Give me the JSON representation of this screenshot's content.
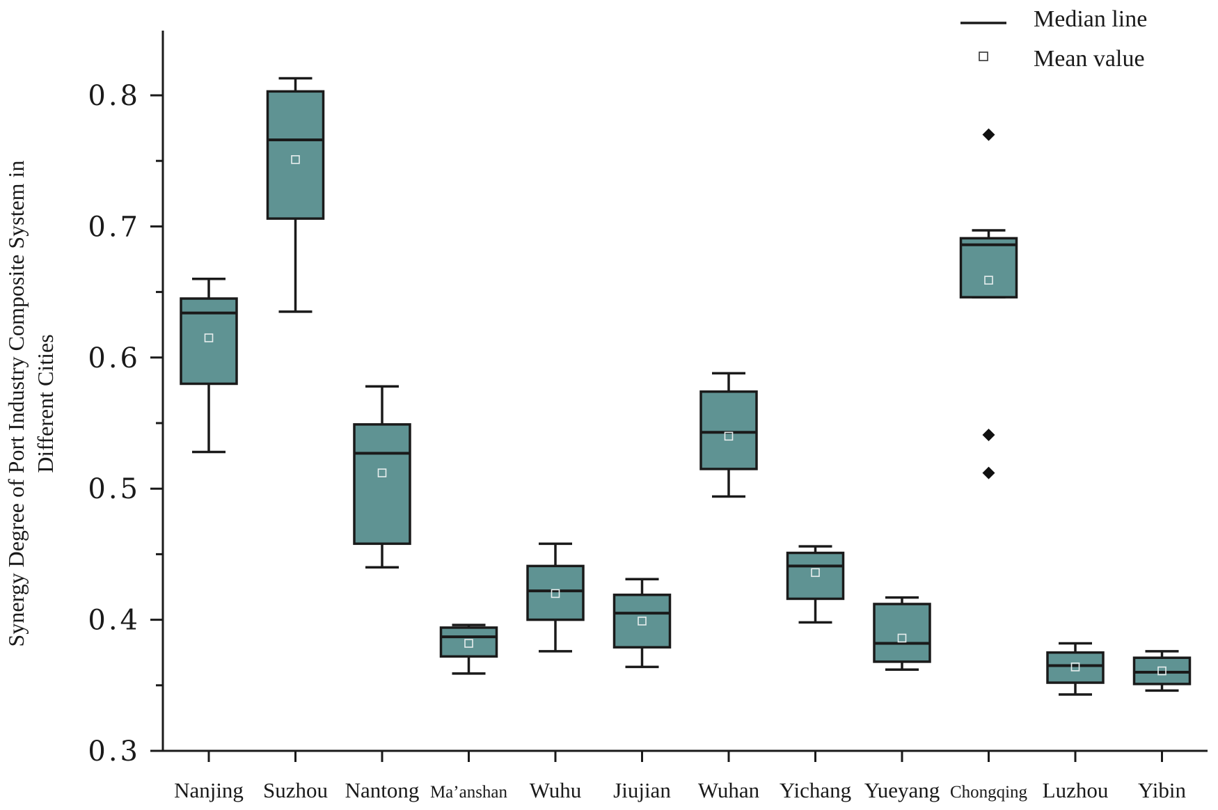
{
  "chart_data": {
    "type": "box",
    "title": "",
    "xlabel": "",
    "ylabel_lines": [
      "Synergy Degree of Port Industry Composite System in",
      "Different Cities"
    ],
    "ylim": [
      0.3,
      0.85
    ],
    "yticks": [
      0.3,
      0.4,
      0.5,
      0.6,
      0.7,
      0.8
    ],
    "ytick_labels": [
      "0.3",
      "0.4",
      "0.5",
      "0.6",
      "0.7",
      "0.8"
    ],
    "categories": [
      "Nanjing",
      "Suzhou",
      "Nantong",
      "Ma’anshan",
      "Wuhu",
      "Jiujian",
      "Wuhan",
      "Yichang",
      "Yueyang",
      "Chongqing",
      "Luzhou",
      "Yibin"
    ],
    "boxes": [
      {
        "city": "Nanjing",
        "min": 0.528,
        "q1": 0.58,
        "median": 0.634,
        "q3": 0.645,
        "max": 0.66,
        "mean": 0.615,
        "outliers": []
      },
      {
        "city": "Suzhou",
        "min": 0.635,
        "q1": 0.706,
        "median": 0.766,
        "q3": 0.803,
        "max": 0.813,
        "mean": 0.751,
        "outliers": []
      },
      {
        "city": "Nantong",
        "min": 0.44,
        "q1": 0.458,
        "median": 0.527,
        "q3": 0.549,
        "max": 0.578,
        "mean": 0.512,
        "outliers": []
      },
      {
        "city": "Ma’anshan",
        "min": 0.359,
        "q1": 0.372,
        "median": 0.387,
        "q3": 0.394,
        "max": 0.396,
        "mean": 0.382,
        "outliers": []
      },
      {
        "city": "Wuhu",
        "min": 0.376,
        "q1": 0.4,
        "median": 0.422,
        "q3": 0.441,
        "max": 0.458,
        "mean": 0.42,
        "outliers": []
      },
      {
        "city": "Jiujian",
        "min": 0.364,
        "q1": 0.379,
        "median": 0.405,
        "q3": 0.419,
        "max": 0.431,
        "mean": 0.399,
        "outliers": []
      },
      {
        "city": "Wuhan",
        "min": 0.494,
        "q1": 0.515,
        "median": 0.543,
        "q3": 0.574,
        "max": 0.588,
        "mean": 0.54,
        "outliers": []
      },
      {
        "city": "Yichang",
        "min": 0.398,
        "q1": 0.416,
        "median": 0.441,
        "q3": 0.451,
        "max": 0.456,
        "mean": 0.436,
        "outliers": []
      },
      {
        "city": "Yueyang",
        "min": 0.362,
        "q1": 0.368,
        "median": 0.382,
        "q3": 0.412,
        "max": 0.417,
        "mean": 0.386,
        "outliers": []
      },
      {
        "city": "Chongqing",
        "min": 0.646,
        "q1": 0.646,
        "median": 0.686,
        "q3": 0.691,
        "max": 0.697,
        "mean": 0.659,
        "outliers": [
          0.77,
          0.541,
          0.512
        ]
      },
      {
        "city": "Luzhou",
        "min": 0.343,
        "q1": 0.352,
        "median": 0.365,
        "q3": 0.375,
        "max": 0.382,
        "mean": 0.364,
        "outliers": []
      },
      {
        "city": "Yibin",
        "min": 0.346,
        "q1": 0.351,
        "median": 0.36,
        "q3": 0.371,
        "max": 0.376,
        "mean": 0.361,
        "outliers": []
      }
    ],
    "legend": [
      {
        "symbol": "line",
        "label": "Median line"
      },
      {
        "symbol": "square",
        "label": "Mean value"
      }
    ],
    "legend_position": "top-right",
    "grid": false,
    "colors": {
      "box_fill": "#5f9393",
      "stroke": "#1a1a1a"
    }
  }
}
